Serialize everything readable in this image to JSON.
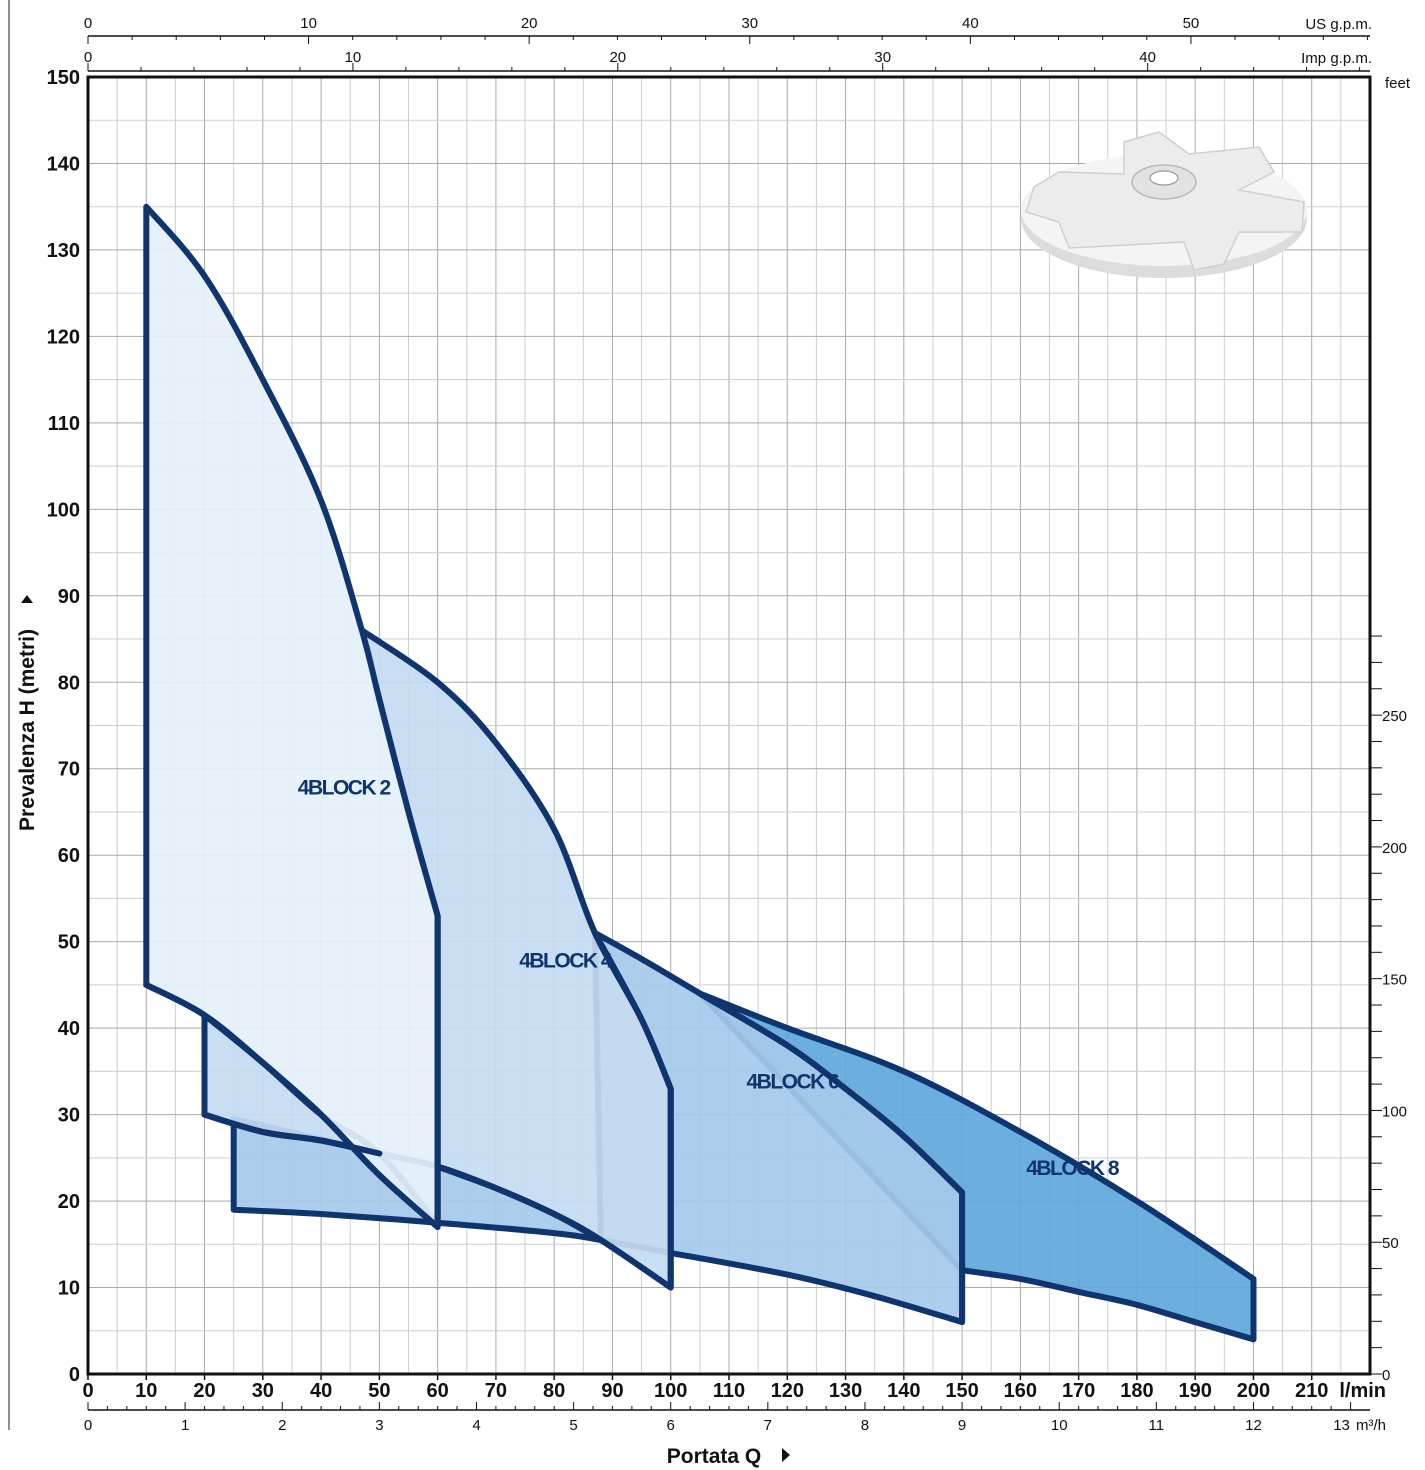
{
  "chart_data": {
    "type": "area",
    "xlabel": "Portata Q",
    "ylabel": "Prevalenza H (metri)",
    "x_unit": "l/min",
    "xlim": [
      0,
      220
    ],
    "ylim": [
      0,
      150
    ],
    "grid": true,
    "x_ticks": [
      "0",
      "10",
      "20",
      "30",
      "40",
      "50",
      "60",
      "70",
      "80",
      "90",
      "100",
      "110",
      "120",
      "130",
      "140",
      "150",
      "160",
      "170",
      "180",
      "190",
      "200",
      "210"
    ],
    "y_ticks": [
      "0",
      "10",
      "20",
      "30",
      "40",
      "50",
      "60",
      "70",
      "80",
      "90",
      "100",
      "110",
      "120",
      "130",
      "140",
      "150"
    ],
    "secondary_axes": {
      "us_gpm": {
        "label": "US g.p.m.",
        "ticks": [
          "0",
          "10",
          "20",
          "30",
          "40",
          "50"
        ]
      },
      "imp_gpm": {
        "label": "Imp g.p.m.",
        "ticks": [
          "0",
          "10",
          "20",
          "30",
          "40"
        ]
      },
      "m3h": {
        "label": "m³/h",
        "ticks": [
          "0",
          "1",
          "2",
          "3",
          "4",
          "5",
          "6",
          "7",
          "8",
          "9",
          "10",
          "11",
          "12",
          "13"
        ]
      },
      "feet": {
        "label": "feet",
        "ticks": [
          "0",
          "50",
          "100",
          "150",
          "200",
          "250"
        ]
      }
    },
    "series": [
      {
        "name": "4BLOCK 2",
        "x_range": [
          10,
          60
        ],
        "head_max_curve": [
          [
            10,
            135
          ],
          [
            20,
            127
          ],
          [
            30,
            115
          ],
          [
            40,
            101
          ],
          [
            47,
            86
          ],
          [
            50,
            78
          ],
          [
            55,
            65
          ],
          [
            60,
            53
          ]
        ],
        "head_min_curve": [
          [
            10,
            45
          ],
          [
            20,
            41.5
          ],
          [
            30,
            36
          ],
          [
            40,
            30
          ],
          [
            50,
            23
          ],
          [
            60,
            17
          ]
        ],
        "label_position": [
          36,
          67
        ]
      },
      {
        "name": "4BLOCK 4",
        "x_range": [
          20,
          100
        ],
        "head_max_curve": [
          [
            47,
            86
          ],
          [
            60,
            80
          ],
          [
            70,
            73
          ],
          [
            80,
            63
          ],
          [
            87,
            51
          ],
          [
            95,
            41
          ],
          [
            100,
            33
          ]
        ],
        "head_min_curve": [
          [
            20,
            30
          ],
          [
            30,
            28
          ],
          [
            40,
            27
          ],
          [
            50,
            25.5
          ],
          [
            60,
            24
          ],
          [
            70,
            21.5
          ],
          [
            80,
            18.5
          ],
          [
            88,
            15.5
          ],
          [
            100,
            10
          ]
        ],
        "label_position": [
          74,
          47
        ]
      },
      {
        "name": "4BLOCK 6",
        "x_range": [
          25,
          150
        ],
        "head_max_curve": [
          [
            87,
            51
          ],
          [
            95,
            48
          ],
          [
            105,
            44
          ],
          [
            120,
            38
          ],
          [
            130,
            33
          ],
          [
            140,
            27.5
          ],
          [
            150,
            21
          ]
        ],
        "head_min_curve": [
          [
            25,
            19
          ],
          [
            40,
            18.5
          ],
          [
            60,
            17.5
          ],
          [
            80,
            16.3
          ],
          [
            88,
            15.5
          ],
          [
            100,
            14
          ],
          [
            120,
            11.5
          ],
          [
            135,
            9
          ],
          [
            150,
            6
          ]
        ],
        "label_position": [
          113,
          33
        ]
      },
      {
        "name": "4BLOCK 8",
        "x_range": [
          105,
          200
        ],
        "head_max_curve": [
          [
            105,
            44
          ],
          [
            120,
            40
          ],
          [
            140,
            35
          ],
          [
            160,
            28
          ],
          [
            180,
            20
          ],
          [
            200,
            11
          ]
        ],
        "head_min_curve": [
          [
            150,
            12
          ],
          [
            160,
            11
          ],
          [
            170,
            9.5
          ],
          [
            180,
            8
          ],
          [
            190,
            6
          ],
          [
            200,
            4
          ]
        ],
        "label_position": [
          161,
          23
        ]
      }
    ]
  },
  "colors": {
    "outline": "#10356e",
    "fill_4block2": "#e5f0fa",
    "fill_4block4": "#c4dbf1",
    "fill_4block6": "#a6c9eb",
    "fill_4block8": "#5fa8db",
    "grid": "#b5b5b5"
  }
}
